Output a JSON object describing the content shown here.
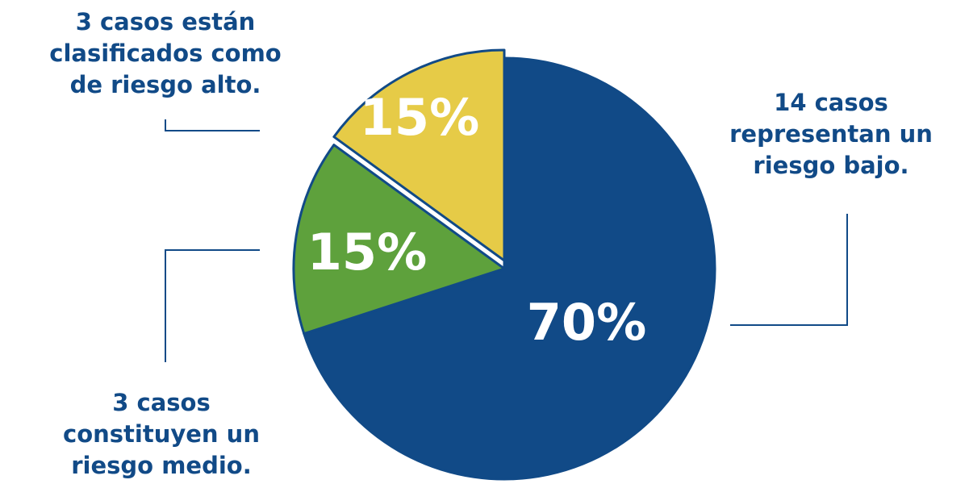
{
  "chart_data": {
    "type": "pie",
    "slices": [
      {
        "label": "70%",
        "value": 70,
        "color": "#114a87"
      },
      {
        "label": "15%",
        "value": 15,
        "color": "#5ea13c"
      },
      {
        "label": "15%",
        "value": 15,
        "color": "#e6cb47"
      }
    ],
    "annotations": {
      "high": [
        "3 casos están",
        "clasificados como",
        "de riesgo alto."
      ],
      "low": [
        "14 casos",
        "representan un",
        "riesgo bajo."
      ],
      "medium": [
        "3 casos",
        "constituyen un",
        "riesgo medio."
      ]
    }
  }
}
